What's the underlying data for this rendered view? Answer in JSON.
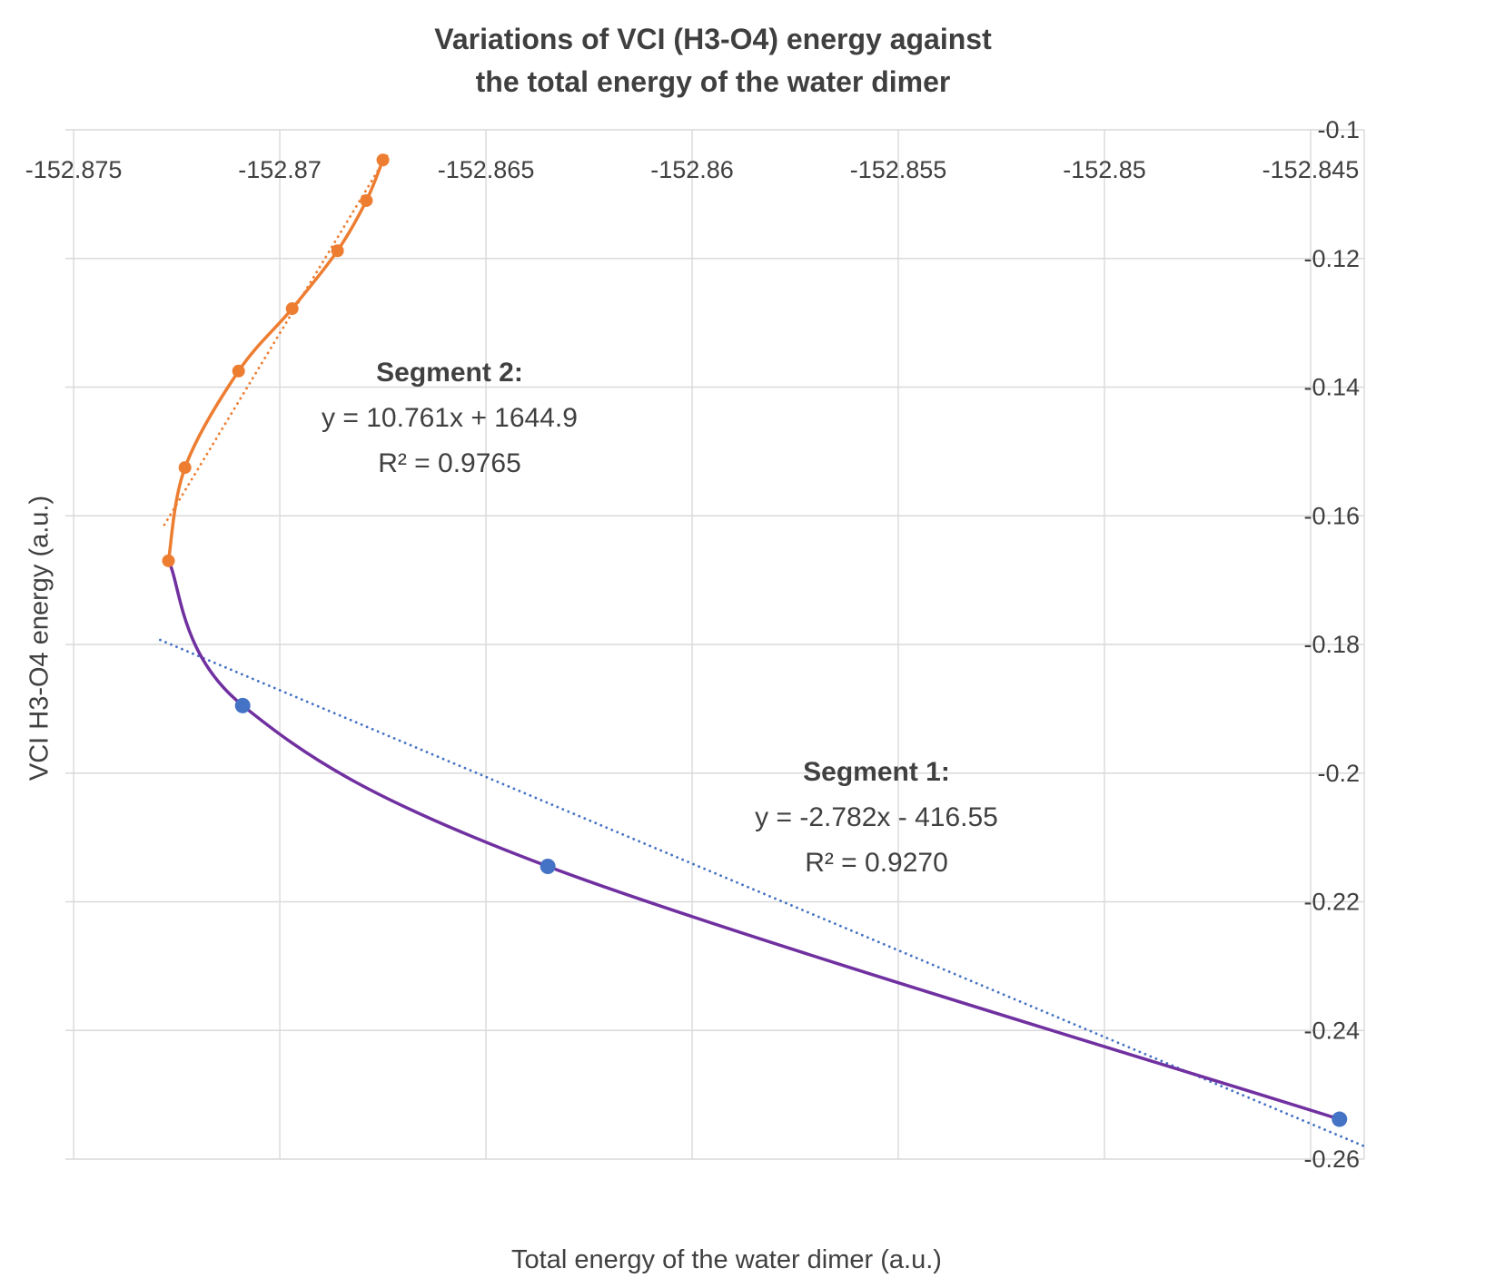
{
  "title": {
    "line1": "Variations of VCI (H3-O4) energy against",
    "line2": "the total energy of the water dimer"
  },
  "axes": {
    "x_title": "Total energy of the water dimer (a.u.)",
    "y_title": "VCI H3-O4  energy (a.u.)",
    "x_ticks": [
      "-152.875",
      "-152.87",
      "-152.865",
      "-152.86",
      "-152.855",
      "-152.85",
      "-152.845"
    ],
    "y_ticks": [
      "-0.1",
      "-0.12",
      "-0.14",
      "-0.16",
      "-0.18",
      "-0.2",
      "-0.22",
      "-0.24",
      "-0.26"
    ]
  },
  "annotations": {
    "segment2": {
      "heading": "Segment 2:",
      "equation": "y = 10.761x + 1644.9",
      "r2": "R² = 0.9765"
    },
    "segment1": {
      "heading": "Segment 1:",
      "equation": "y = -2.782x - 416.55",
      "r2": "R² = 0.9270"
    }
  },
  "colors": {
    "orange": "#ED7D31",
    "blue": "#4472C4",
    "purple": "#7030A0",
    "grid": "#D9D9D9",
    "text": "#404040"
  },
  "chart_data": {
    "type": "scatter",
    "title": "Variations of VCI (H3-O4) energy against the total energy of the water dimer",
    "xlabel": "Total energy of the water dimer (a.u.)",
    "ylabel": "VCI H3-O4  energy (a.u.)",
    "grid": true,
    "xlim": [
      -152.8752,
      -152.8437
    ],
    "ylim": [
      -0.26,
      -0.1
    ],
    "x_tick_values": [
      -152.875,
      -152.87,
      -152.865,
      -152.86,
      -152.855,
      -152.85,
      -152.845
    ],
    "y_tick_values": [
      -0.1,
      -0.12,
      -0.14,
      -0.16,
      -0.18,
      -0.2,
      -0.22,
      -0.24,
      -0.26
    ],
    "series": [
      {
        "name": "Segment 2",
        "marker_color": "#ED7D31",
        "line_color": "#ED7D31",
        "line_width": 3.5,
        "marker_radius": 7,
        "points": [
          [
            -152.8727,
            -0.167
          ],
          [
            -152.8723,
            -0.1525
          ],
          [
            -152.871,
            -0.1375
          ],
          [
            -152.8697,
            -0.1278
          ],
          [
            -152.8686,
            -0.1188
          ],
          [
            -152.8679,
            -0.111
          ],
          [
            -152.8675,
            -0.1047
          ]
        ],
        "trendline": {
          "equation": "y = 10.761x + 1644.9",
          "r2": "R² = 0.9765",
          "slope": 10.761,
          "intercept": 1644.9,
          "color": "#ED7D31",
          "points": [
            [
              -152.8728,
              -0.1614
            ],
            [
              -152.8674,
              -0.104
            ]
          ]
        }
      },
      {
        "name": "Segment 1",
        "marker_color": "#4472C4",
        "line_color": "#7030A0",
        "line_width": 3.5,
        "marker_radius": 8.5,
        "points": [
          [
            -152.8709,
            -0.1895
          ],
          [
            -152.8635,
            -0.2145
          ],
          [
            -152.8443,
            -0.2538
          ]
        ],
        "line_points": [
          [
            -152.8727,
            -0.167
          ],
          [
            -152.8709,
            -0.1895
          ],
          [
            -152.8635,
            -0.2145
          ],
          [
            -152.8443,
            -0.2538
          ]
        ],
        "trendline": {
          "equation": "y = -2.782x - 416.55",
          "r2": "R² = 0.9270",
          "slope": -2.782,
          "intercept": -416.55,
          "color": "#4472C4",
          "points": [
            [
              -152.8729,
              -0.1793
            ],
            [
              -152.8437,
              -0.258
            ]
          ]
        }
      }
    ]
  }
}
